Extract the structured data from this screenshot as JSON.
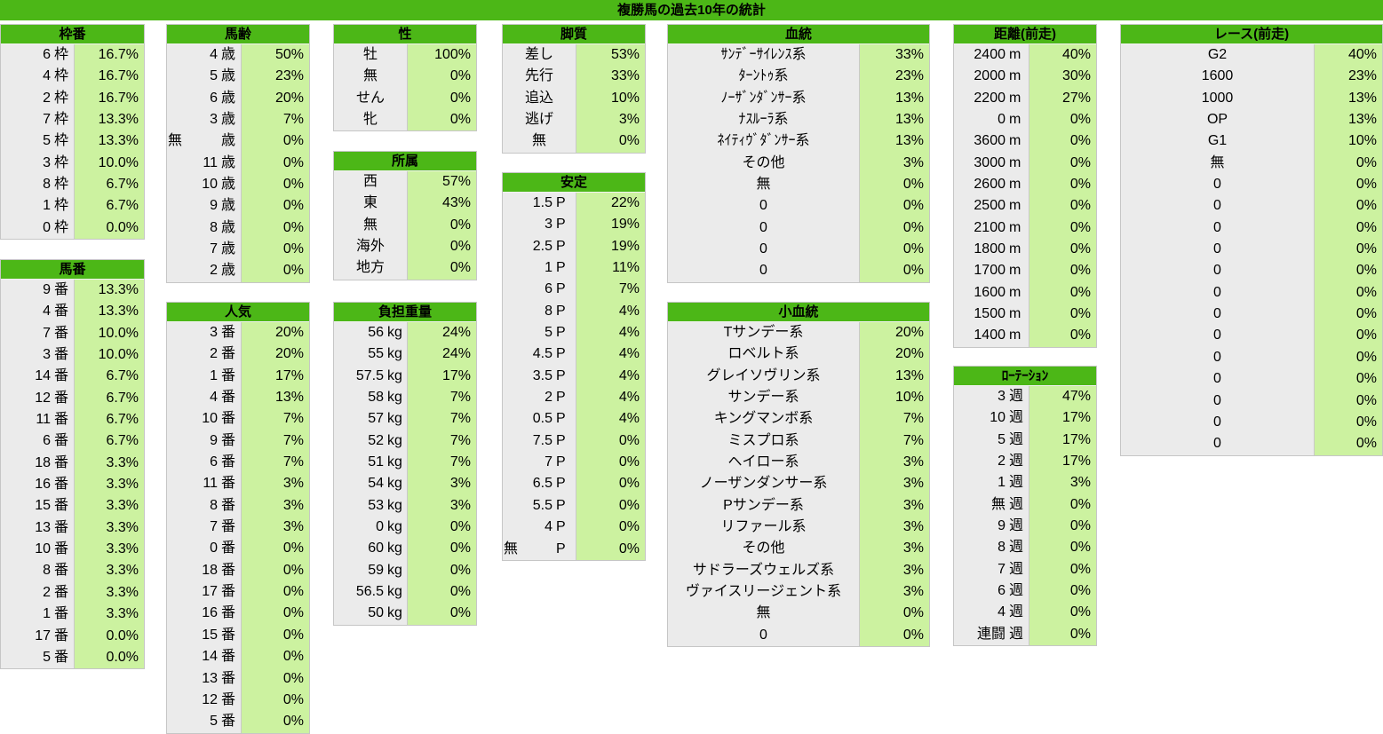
{
  "title": "複勝馬の過去10年の統計",
  "colors": {
    "header_green": "#4cb717",
    "value_cell_green": "#ccf2a0",
    "label_cell_gray": "#ebebeb",
    "border_gray": "#c6c6c6",
    "text": "#000000"
  },
  "tables": [
    {
      "id": "wakuban",
      "title": "枠番",
      "unit": "枠",
      "rows": [
        [
          "6",
          "16.7%"
        ],
        [
          "4",
          "16.7%"
        ],
        [
          "2",
          "16.7%"
        ],
        [
          "7",
          "13.3%"
        ],
        [
          "5",
          "13.3%"
        ],
        [
          "3",
          "10.0%"
        ],
        [
          "8",
          "6.7%"
        ],
        [
          "1",
          "6.7%"
        ],
        [
          "0",
          "0.0%"
        ]
      ]
    },
    {
      "id": "umaban",
      "title": "馬番",
      "unit": "番",
      "rows": [
        [
          "9",
          "13.3%"
        ],
        [
          "4",
          "13.3%"
        ],
        [
          "7",
          "10.0%"
        ],
        [
          "3",
          "10.0%"
        ],
        [
          "14",
          "6.7%"
        ],
        [
          "12",
          "6.7%"
        ],
        [
          "11",
          "6.7%"
        ],
        [
          "6",
          "6.7%"
        ],
        [
          "18",
          "3.3%"
        ],
        [
          "16",
          "3.3%"
        ],
        [
          "15",
          "3.3%"
        ],
        [
          "13",
          "3.3%"
        ],
        [
          "10",
          "3.3%"
        ],
        [
          "8",
          "3.3%"
        ],
        [
          "2",
          "3.3%"
        ],
        [
          "1",
          "3.3%"
        ],
        [
          "17",
          "0.0%"
        ],
        [
          "5",
          "0.0%"
        ]
      ]
    },
    {
      "id": "barei",
      "title": "馬齢",
      "unit": "歳",
      "rows": [
        [
          "4",
          "50%"
        ],
        [
          "5",
          "23%"
        ],
        [
          "6",
          "20%"
        ],
        [
          "3",
          "7%"
        ],
        [
          "無",
          "0%",
          "left"
        ],
        [
          "11",
          "0%"
        ],
        [
          "10",
          "0%"
        ],
        [
          "9",
          "0%"
        ],
        [
          "8",
          "0%"
        ],
        [
          "7",
          "0%"
        ],
        [
          "2",
          "0%"
        ]
      ]
    },
    {
      "id": "ninki",
      "title": "人気",
      "unit": "番",
      "rows": [
        [
          "3",
          "20%"
        ],
        [
          "2",
          "20%"
        ],
        [
          "1",
          "17%"
        ],
        [
          "4",
          "13%"
        ],
        [
          "10",
          "7%"
        ],
        [
          "9",
          "7%"
        ],
        [
          "6",
          "7%"
        ],
        [
          "11",
          "3%"
        ],
        [
          "8",
          "3%"
        ],
        [
          "7",
          "3%"
        ],
        [
          "0",
          "0%"
        ],
        [
          "18",
          "0%"
        ],
        [
          "17",
          "0%"
        ],
        [
          "16",
          "0%"
        ],
        [
          "15",
          "0%"
        ],
        [
          "14",
          "0%"
        ],
        [
          "13",
          "0%"
        ],
        [
          "12",
          "0%"
        ],
        [
          "5",
          "0%"
        ]
      ]
    },
    {
      "id": "sei",
      "title": "性",
      "center": true,
      "rows": [
        [
          "牡",
          "100%"
        ],
        [
          "無",
          "0%"
        ],
        [
          "せん",
          "0%"
        ],
        [
          "牝",
          "0%"
        ]
      ]
    },
    {
      "id": "shozoku",
      "title": "所属",
      "center": true,
      "rows": [
        [
          "西",
          "57%"
        ],
        [
          "東",
          "43%"
        ],
        [
          "無",
          "0%"
        ],
        [
          "海外",
          "0%"
        ],
        [
          "地方",
          "0%"
        ]
      ]
    },
    {
      "id": "futan",
      "title": "負担重量",
      "unit": "kg",
      "rows": [
        [
          "56",
          "24%"
        ],
        [
          "55",
          "24%"
        ],
        [
          "57.5",
          "17%"
        ],
        [
          "58",
          "7%"
        ],
        [
          "57",
          "7%"
        ],
        [
          "52",
          "7%"
        ],
        [
          "51",
          "7%"
        ],
        [
          "54",
          "3%"
        ],
        [
          "53",
          "3%"
        ],
        [
          "0",
          "0%"
        ],
        [
          "60",
          "0%"
        ],
        [
          "59",
          "0%"
        ],
        [
          "56.5",
          "0%"
        ],
        [
          "50",
          "0%"
        ]
      ]
    },
    {
      "id": "kyakushitsu",
      "title": "脚質",
      "center": true,
      "rows": [
        [
          "差し",
          "53%"
        ],
        [
          "先行",
          "33%"
        ],
        [
          "追込",
          "10%"
        ],
        [
          "逃げ",
          "3%"
        ],
        [
          "無",
          "0%"
        ]
      ]
    },
    {
      "id": "antei",
      "title": "安定",
      "unit": "P",
      "rows": [
        [
          "1.5",
          "22%"
        ],
        [
          "3",
          "19%"
        ],
        [
          "2.5",
          "19%"
        ],
        [
          "1",
          "11%"
        ],
        [
          "6",
          "7%"
        ],
        [
          "8",
          "4%"
        ],
        [
          "5",
          "4%"
        ],
        [
          "4.5",
          "4%"
        ],
        [
          "3.5",
          "4%"
        ],
        [
          "2",
          "4%"
        ],
        [
          "0.5",
          "4%"
        ],
        [
          "7.5",
          "0%"
        ],
        [
          "7",
          "0%"
        ],
        [
          "6.5",
          "0%"
        ],
        [
          "5.5",
          "0%"
        ],
        [
          "4",
          "0%"
        ],
        [
          "無",
          "0%",
          "left"
        ]
      ]
    },
    {
      "id": "kettou",
      "title": "血統",
      "center": true,
      "rows": [
        [
          "ｻﾝﾃﾞｰｻｲﾚﾝｽ系",
          "33%"
        ],
        [
          "ﾀｰﾝﾄｩ系",
          "23%"
        ],
        [
          "ﾉｰｻﾞﾝﾀﾞﾝｻｰ系",
          "13%"
        ],
        [
          "ﾅｽﾙｰﾗ系",
          "13%"
        ],
        [
          "ﾈｲﾃｨｳﾞﾀﾞﾝｻｰ系",
          "13%"
        ],
        [
          "その他",
          "3%"
        ],
        [
          "無",
          "0%"
        ],
        [
          "0",
          "0%"
        ],
        [
          "0",
          "0%"
        ],
        [
          "0",
          "0%"
        ],
        [
          "0",
          "0%"
        ]
      ]
    },
    {
      "id": "kokettou",
      "title": "小血統",
      "center": true,
      "rows": [
        [
          "Tサンデー系",
          "20%"
        ],
        [
          "ロベルト系",
          "20%"
        ],
        [
          "グレイソヴリン系",
          "13%"
        ],
        [
          "サンデー系",
          "10%"
        ],
        [
          "キングマンボ系",
          "7%"
        ],
        [
          "ミスプロ系",
          "7%"
        ],
        [
          "ヘイロー系",
          "3%"
        ],
        [
          "ノーザンダンサー系",
          "3%"
        ],
        [
          "Pサンデー系",
          "3%"
        ],
        [
          "リファール系",
          "3%"
        ],
        [
          "その他",
          "3%"
        ],
        [
          "サドラーズウェルズ系",
          "3%"
        ],
        [
          "ヴァイスリージェント系",
          "3%"
        ],
        [
          "無",
          "0%"
        ],
        [
          "0",
          "0%"
        ]
      ]
    },
    {
      "id": "kyori",
      "title": "距離(前走)",
      "unit": "m",
      "rows": [
        [
          "2400",
          "40%"
        ],
        [
          "2000",
          "30%"
        ],
        [
          "2200",
          "27%"
        ],
        [
          "0",
          "0%"
        ],
        [
          "3600",
          "0%"
        ],
        [
          "3000",
          "0%"
        ],
        [
          "2600",
          "0%"
        ],
        [
          "2500",
          "0%"
        ],
        [
          "2100",
          "0%"
        ],
        [
          "1800",
          "0%"
        ],
        [
          "1700",
          "0%"
        ],
        [
          "1600",
          "0%"
        ],
        [
          "1500",
          "0%"
        ],
        [
          "1400",
          "0%"
        ]
      ]
    },
    {
      "id": "rotation",
      "title": "ﾛｰﾃｰｼｮﾝ",
      "unit": "週",
      "rows": [
        [
          "3",
          "47%"
        ],
        [
          "10",
          "17%"
        ],
        [
          "5",
          "17%"
        ],
        [
          "2",
          "17%"
        ],
        [
          "1",
          "3%"
        ],
        [
          "無",
          "0%"
        ],
        [
          "9",
          "0%"
        ],
        [
          "8",
          "0%"
        ],
        [
          "7",
          "0%"
        ],
        [
          "6",
          "0%"
        ],
        [
          "4",
          "0%"
        ],
        [
          "連闘",
          "0%"
        ]
      ]
    },
    {
      "id": "race",
      "title": "レース(前走)",
      "center": true,
      "rows": [
        [
          "G2",
          "40%"
        ],
        [
          "1600",
          "23%"
        ],
        [
          "1000",
          "13%"
        ],
        [
          "OP",
          "13%"
        ],
        [
          "G1",
          "10%"
        ],
        [
          "無",
          "0%"
        ],
        [
          "0",
          "0%"
        ],
        [
          "0",
          "0%"
        ],
        [
          "0",
          "0%"
        ],
        [
          "0",
          "0%"
        ],
        [
          "0",
          "0%"
        ],
        [
          "0",
          "0%"
        ],
        [
          "0",
          "0%"
        ],
        [
          "0",
          "0%"
        ],
        [
          "0",
          "0%"
        ],
        [
          "0",
          "0%"
        ],
        [
          "0",
          "0%"
        ],
        [
          "0",
          "0%"
        ],
        [
          "0",
          "0%"
        ]
      ]
    }
  ]
}
